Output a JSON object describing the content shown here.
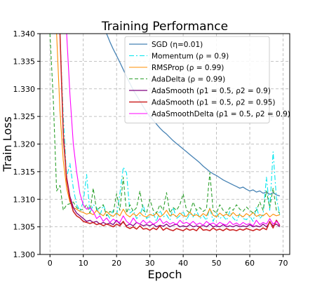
{
  "chart_data": {
    "type": "line",
    "title": "Training Performance",
    "xlabel": "Epoch",
    "ylabel": "Train Loss",
    "xlim": [
      -3,
      72
    ],
    "ylim": [
      1.3,
      1.34
    ],
    "xticks": [
      0,
      10,
      20,
      30,
      40,
      50,
      60,
      70
    ],
    "yticks": [
      1.3,
      1.305,
      1.31,
      1.315,
      1.32,
      1.325,
      1.33,
      1.335,
      1.34
    ],
    "ytick_labels": [
      "1.300",
      "1.305",
      "1.310",
      "1.315",
      "1.320",
      "1.325",
      "1.330",
      "1.335",
      "1.340"
    ],
    "grid": true,
    "legend_position": "top-right",
    "series": [
      {
        "name": "SGD (η=0.01)",
        "color": "#4682b4",
        "dash": "solid",
        "width": 1.3,
        "x": [
          17,
          18,
          19,
          20,
          21,
          22,
          23,
          24,
          25,
          26,
          27,
          28,
          29,
          30,
          31,
          32,
          33,
          34,
          35,
          36,
          37,
          38,
          39,
          40,
          41,
          42,
          43,
          44,
          45,
          46,
          47,
          48,
          49,
          50,
          51,
          52,
          53,
          54,
          55,
          56,
          57,
          58,
          59,
          60,
          61,
          62,
          63,
          64,
          65,
          66,
          67,
          68,
          69
        ],
        "y": [
          1.34,
          1.3385,
          1.3372,
          1.336,
          1.3348,
          1.3335,
          1.3322,
          1.331,
          1.3298,
          1.3288,
          1.3278,
          1.3268,
          1.3258,
          1.325,
          1.3243,
          1.3236,
          1.3229,
          1.3223,
          1.3218,
          1.3212,
          1.3206,
          1.3201,
          1.3196,
          1.3191,
          1.3186,
          1.3181,
          1.3176,
          1.3171,
          1.3166,
          1.316,
          1.3155,
          1.315,
          1.3146,
          1.3143,
          1.3139,
          1.3135,
          1.3132,
          1.3129,
          1.3126,
          1.3123,
          1.312,
          1.3122,
          1.3118,
          1.3115,
          1.3117,
          1.3113,
          1.3115,
          1.3111,
          1.3113,
          1.3109,
          1.3112,
          1.3108,
          1.3106
        ]
      },
      {
        "name": "Momentum (ρ = 0.9)",
        "color": "#00e5ee",
        "dash": "dashdot",
        "width": 1.1,
        "x": [
          3,
          4,
          5,
          6,
          7,
          8,
          9,
          10,
          11,
          12,
          13,
          14,
          15,
          16,
          17,
          18,
          19,
          20,
          21,
          22,
          23,
          24,
          25,
          26,
          27,
          28,
          29,
          30,
          31,
          32,
          33,
          34,
          35,
          36,
          37,
          38,
          39,
          40,
          41,
          42,
          43,
          44,
          45,
          46,
          47,
          48,
          49,
          50,
          51,
          52,
          53,
          54,
          55,
          56,
          57,
          58,
          59,
          60,
          61,
          62,
          63,
          64,
          65,
          66,
          67,
          68,
          69
        ],
        "y": [
          1.34,
          1.325,
          1.314,
          1.3165,
          1.312,
          1.309,
          1.308,
          1.3095,
          1.3145,
          1.3075,
          1.309,
          1.3085,
          1.307,
          1.309,
          1.3075,
          1.3065,
          1.308,
          1.307,
          1.311,
          1.3158,
          1.3148,
          1.3075,
          1.308,
          1.3065,
          1.307,
          1.309,
          1.3065,
          1.307,
          1.3075,
          1.306,
          1.308,
          1.3068,
          1.3072,
          1.3062,
          1.3085,
          1.3065,
          1.307,
          1.3078,
          1.3062,
          1.3075,
          1.3068,
          1.308,
          1.3065,
          1.307,
          1.3062,
          1.3085,
          1.306,
          1.3075,
          1.3065,
          1.307,
          1.3062,
          1.3078,
          1.3066,
          1.306,
          1.3074,
          1.3065,
          1.3063,
          1.307,
          1.306,
          1.3086,
          1.3065,
          1.3072,
          1.314,
          1.308,
          1.3186,
          1.3102,
          1.3072
        ]
      },
      {
        "name": "RMSProp (ρ = 0.99)",
        "color": "#ff8c00",
        "dash": "solid",
        "width": 1.1,
        "x": [
          2,
          3,
          4,
          5,
          6,
          7,
          8,
          9,
          10,
          11,
          12,
          13,
          14,
          15,
          16,
          17,
          18,
          19,
          20,
          21,
          22,
          23,
          24,
          25,
          26,
          27,
          28,
          29,
          30,
          31,
          32,
          33,
          34,
          35,
          36,
          37,
          38,
          39,
          40,
          41,
          42,
          43,
          44,
          45,
          46,
          47,
          48,
          49,
          50,
          51,
          52,
          53,
          54,
          55,
          56,
          57,
          58,
          59,
          60,
          61,
          62,
          63,
          64,
          65,
          66,
          67,
          68,
          69
        ],
        "y": [
          1.34,
          1.326,
          1.317,
          1.312,
          1.3095,
          1.3085,
          1.3082,
          1.3078,
          1.3076,
          1.3073,
          1.3075,
          1.3072,
          1.308,
          1.3074,
          1.307,
          1.3078,
          1.3072,
          1.3069,
          1.3075,
          1.307,
          1.3082,
          1.3072,
          1.3068,
          1.3074,
          1.307,
          1.3076,
          1.307,
          1.3068,
          1.3073,
          1.307,
          1.3075,
          1.3068,
          1.3072,
          1.308,
          1.307,
          1.3073,
          1.3068,
          1.3075,
          1.307,
          1.3069,
          1.3077,
          1.307,
          1.3072,
          1.3068,
          1.3074,
          1.307,
          1.3083,
          1.3071,
          1.3068,
          1.3075,
          1.307,
          1.3073,
          1.3069,
          1.3076,
          1.307,
          1.3072,
          1.3068,
          1.3074,
          1.307,
          1.3076,
          1.3069,
          1.3072,
          1.307,
          1.3075,
          1.3068,
          1.3073,
          1.307,
          1.3072
        ]
      },
      {
        "name": "AdaDelta (ρ = 0.99)",
        "color": "#2ca02c",
        "dash": "dashed",
        "width": 1.1,
        "x": [
          0,
          1,
          2,
          3,
          4,
          5,
          6,
          7,
          8,
          9,
          10,
          11,
          12,
          13,
          14,
          15,
          16,
          17,
          18,
          19,
          20,
          21,
          22,
          23,
          24,
          25,
          26,
          27,
          28,
          29,
          30,
          31,
          32,
          33,
          34,
          35,
          36,
          37,
          38,
          39,
          40,
          41,
          42,
          43,
          44,
          45,
          46,
          47,
          48,
          49,
          50,
          51,
          52,
          53,
          54,
          55,
          56,
          57,
          58,
          59,
          60,
          61,
          62,
          63,
          64,
          65,
          66,
          67,
          68,
          69
        ],
        "y": [
          1.34,
          1.328,
          1.3115,
          1.3125,
          1.308,
          1.309,
          1.3092,
          1.3095,
          1.3085,
          1.308,
          1.3082,
          1.309,
          1.3075,
          1.312,
          1.308,
          1.3085,
          1.309,
          1.307,
          1.3078,
          1.3075,
          1.311,
          1.308,
          1.314,
          1.3075,
          1.309,
          1.3078,
          1.3085,
          1.3115,
          1.308,
          1.3075,
          1.31,
          1.308,
          1.3075,
          1.309,
          1.308,
          1.3112,
          1.3075,
          1.3085,
          1.308,
          1.309,
          1.311,
          1.308,
          1.3075,
          1.3095,
          1.308,
          1.3085,
          1.3078,
          1.3082,
          1.3148,
          1.308,
          1.3075,
          1.309,
          1.308,
          1.3075,
          1.3085,
          1.308,
          1.309,
          1.3082,
          1.3078,
          1.3086,
          1.308,
          1.3075,
          1.308,
          1.3095,
          1.308,
          1.3115,
          1.3085,
          1.312,
          1.308,
          1.3075
        ]
      },
      {
        "name": "AdaSmooth (ρ1 = 0.5, ρ2 = 0.9)",
        "color": "#800080",
        "dash": "solid",
        "width": 1.3,
        "x": [
          4,
          5,
          6,
          7,
          8,
          9,
          10,
          11,
          12,
          13,
          14,
          15,
          16,
          17,
          18,
          19,
          20,
          21,
          22,
          23,
          24,
          25,
          26,
          27,
          28,
          29,
          30,
          31,
          32,
          33,
          34,
          35,
          36,
          37,
          38,
          39,
          40,
          41,
          42,
          43,
          44,
          45,
          46,
          47,
          48,
          49,
          50,
          51,
          52,
          53,
          54,
          55,
          56,
          57,
          58,
          59,
          60,
          61,
          62,
          63,
          64,
          65,
          66,
          67,
          68,
          69
        ],
        "y": [
          1.321,
          1.314,
          1.3105,
          1.3085,
          1.3075,
          1.307,
          1.3065,
          1.306,
          1.3062,
          1.3058,
          1.306,
          1.3055,
          1.3058,
          1.3055,
          1.3057,
          1.3054,
          1.3062,
          1.3055,
          1.3058,
          1.3052,
          1.3055,
          1.3052,
          1.3058,
          1.3055,
          1.3052,
          1.3054,
          1.3052,
          1.3055,
          1.305,
          1.3053,
          1.3051,
          1.3055,
          1.305,
          1.3053,
          1.3055,
          1.305,
          1.3052,
          1.305,
          1.3054,
          1.305,
          1.3052,
          1.305,
          1.3053,
          1.305,
          1.3055,
          1.305,
          1.3052,
          1.305,
          1.3054,
          1.305,
          1.3052,
          1.305,
          1.3053,
          1.305,
          1.3052,
          1.305,
          1.3054,
          1.305,
          1.3052,
          1.305,
          1.3055,
          1.305,
          1.3058,
          1.3052,
          1.3055,
          1.305
        ]
      },
      {
        "name": "AdaSmooth (ρ1 = 0.5, ρ2 = 0.95)",
        "color": "#cd2626",
        "dash": "solid",
        "width": 1.6,
        "x": [
          3,
          4,
          5,
          6,
          7,
          8,
          9,
          10,
          11,
          12,
          13,
          14,
          15,
          16,
          17,
          18,
          19,
          20,
          21,
          22,
          23,
          24,
          25,
          26,
          27,
          28,
          29,
          30,
          31,
          32,
          33,
          34,
          35,
          36,
          37,
          38,
          39,
          40,
          41,
          42,
          43,
          44,
          45,
          46,
          47,
          48,
          49,
          50,
          51,
          52,
          53,
          54,
          55,
          56,
          57,
          58,
          59,
          60,
          61,
          62,
          63,
          64,
          65,
          66,
          67,
          68,
          69
        ],
        "y": [
          1.34,
          1.322,
          1.3135,
          1.31,
          1.3078,
          1.307,
          1.3066,
          1.306,
          1.3058,
          1.3056,
          1.3058,
          1.3054,
          1.3056,
          1.3052,
          1.3055,
          1.3053,
          1.305,
          1.3055,
          1.3052,
          1.306,
          1.305,
          1.3047,
          1.305,
          1.3046,
          1.3052,
          1.3046,
          1.3047,
          1.3044,
          1.3048,
          1.3045,
          1.3052,
          1.3044,
          1.3048,
          1.3045,
          1.3043,
          1.3047,
          1.3045,
          1.3043,
          1.3047,
          1.3044,
          1.3046,
          1.3043,
          1.305,
          1.3044,
          1.3045,
          1.3043,
          1.3048,
          1.3044,
          1.3046,
          1.3043,
          1.3047,
          1.3044,
          1.3045,
          1.3043,
          1.3046,
          1.3044,
          1.3047,
          1.3045,
          1.3043,
          1.3046,
          1.3044,
          1.3048,
          1.3045,
          1.306,
          1.3048,
          1.3062,
          1.3052
        ]
      },
      {
        "name": "AdaSmoothDelta (ρ1 = 0.5, ρ2 = 0.9)",
        "color": "#ff00ff",
        "dash": "solid",
        "width": 1.1,
        "x": [
          5,
          6,
          7,
          8,
          9,
          10,
          11,
          12,
          13,
          14,
          15,
          16,
          17,
          18,
          19,
          20,
          21,
          22,
          23,
          24,
          25,
          26,
          27,
          28,
          29,
          30,
          31,
          32,
          33,
          34,
          35,
          36,
          37,
          38,
          39,
          40,
          41,
          42,
          43,
          44,
          45,
          46,
          47,
          48,
          49,
          50,
          51,
          52,
          53,
          54,
          55,
          56,
          57,
          58,
          59,
          60,
          61,
          62,
          63,
          64,
          65,
          66,
          67,
          68,
          69
        ],
        "y": [
          1.34,
          1.329,
          1.32,
          1.315,
          1.311,
          1.309,
          1.3082,
          1.3085,
          1.3078,
          1.3065,
          1.307,
          1.306,
          1.3066,
          1.3058,
          1.3064,
          1.306,
          1.3058,
          1.307,
          1.306,
          1.3055,
          1.3066,
          1.3058,
          1.3055,
          1.3062,
          1.3056,
          1.306,
          1.3055,
          1.3058,
          1.3065,
          1.3056,
          1.306,
          1.3055,
          1.3058,
          1.3054,
          1.3062,
          1.3056,
          1.3058,
          1.3055,
          1.306,
          1.3054,
          1.3057,
          1.3053,
          1.306,
          1.3055,
          1.3057,
          1.3053,
          1.3058,
          1.3055,
          1.3053,
          1.306,
          1.3054,
          1.3057,
          1.3053,
          1.3058,
          1.3054,
          1.3056,
          1.3052,
          1.3062,
          1.3054,
          1.3058,
          1.3055,
          1.3065,
          1.3055,
          1.306,
          1.3054
        ]
      }
    ]
  }
}
